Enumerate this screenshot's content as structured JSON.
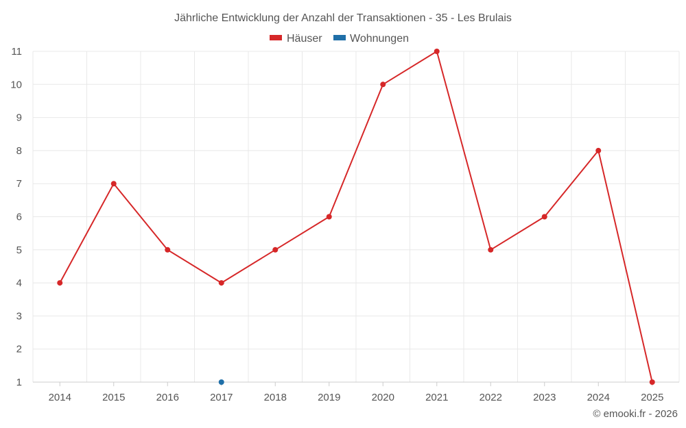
{
  "chart_data": {
    "type": "line",
    "title": "Jährliche Entwicklung der Anzahl der Transaktionen - 35 - Les Brulais",
    "credit": "© emooki.fr - 2026",
    "categories": [
      "2014",
      "2015",
      "2016",
      "2017",
      "2018",
      "2019",
      "2020",
      "2021",
      "2022",
      "2023",
      "2024",
      "2025"
    ],
    "ylim": [
      1,
      11
    ],
    "yticks": [
      1,
      2,
      3,
      4,
      5,
      6,
      7,
      8,
      9,
      10,
      11
    ],
    "grid": true,
    "legend_position": "top-center",
    "series": [
      {
        "name": "Häuser",
        "color": "#d62728",
        "values": [
          4,
          7,
          5,
          4,
          5,
          6,
          10,
          11,
          5,
          6,
          8,
          1
        ]
      },
      {
        "name": "Wohnungen",
        "color": "#1f6fa8",
        "values": [
          null,
          null,
          null,
          1,
          null,
          null,
          null,
          null,
          null,
          null,
          null,
          null
        ]
      }
    ]
  }
}
